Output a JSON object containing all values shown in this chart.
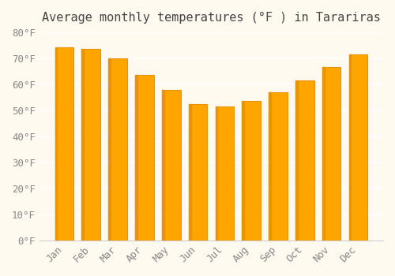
{
  "title": "Average monthly temperatures (°F ) in Tarariras",
  "months": [
    "Jan",
    "Feb",
    "Mar",
    "Apr",
    "May",
    "Jun",
    "Jul",
    "Aug",
    "Sep",
    "Oct",
    "Nov",
    "Dec"
  ],
  "values": [
    74.3,
    73.5,
    70.0,
    63.5,
    58.0,
    52.5,
    51.5,
    53.5,
    57.0,
    61.5,
    66.5,
    71.5
  ],
  "bar_color": "#FFA500",
  "bar_edge_color": "#E8940A",
  "ylim": [
    0,
    80
  ],
  "yticks": [
    0,
    10,
    20,
    30,
    40,
    50,
    60,
    70,
    80
  ],
  "background_color": "#FFFAF0",
  "grid_color": "#FFFFFF",
  "title_fontsize": 11,
  "tick_fontsize": 9
}
